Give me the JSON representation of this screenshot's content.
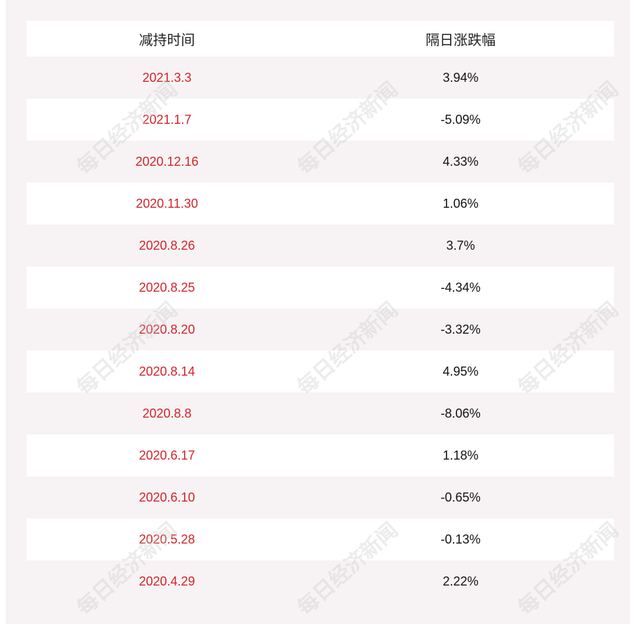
{
  "table": {
    "headers": [
      "减持时间",
      "隔日涨跌幅"
    ],
    "rows": [
      {
        "date": "2021.3.3",
        "change": "3.94%"
      },
      {
        "date": "2021.1.7",
        "change": "-5.09%"
      },
      {
        "date": "2020.12.16",
        "change": "4.33%"
      },
      {
        "date": "2020.11.30",
        "change": "1.06%"
      },
      {
        "date": "2020.8.26",
        "change": "3.7%"
      },
      {
        "date": "2020.8.25",
        "change": "-4.34%"
      },
      {
        "date": "2020.8.20",
        "change": "-3.32%"
      },
      {
        "date": "2020.8.14",
        "change": "4.95%"
      },
      {
        "date": "2020.8.8",
        "change": "-8.06%"
      },
      {
        "date": "2020.6.17",
        "change": "1.18%"
      },
      {
        "date": "2020.6.10",
        "change": "-0.65%"
      },
      {
        "date": "2020.5.28",
        "change": "-0.13%"
      },
      {
        "date": "2020.4.29",
        "change": "2.22%"
      }
    ]
  },
  "watermark": "每日经济新闻",
  "colors": {
    "date_text": "#d2232a",
    "value_text": "#111111",
    "panel_bg": "#f7f3f4"
  }
}
